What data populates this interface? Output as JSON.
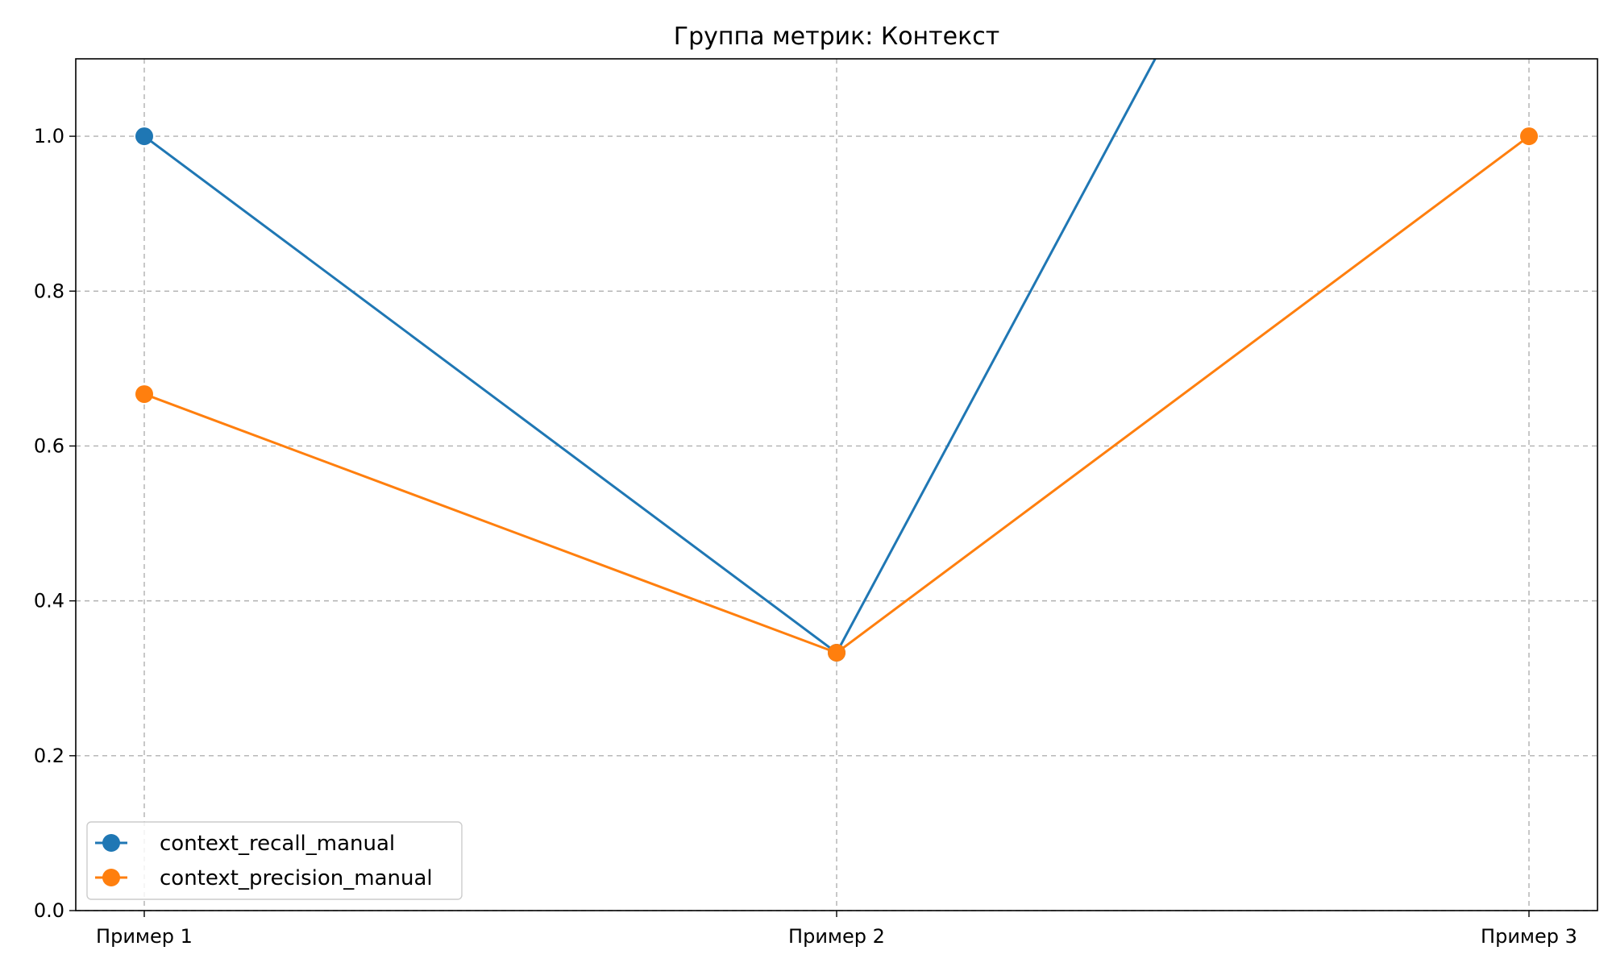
{
  "chart_data": {
    "type": "line",
    "title": "Группа метрик: Контекст",
    "xlabel": "",
    "ylabel": "",
    "categories": [
      "Пример 1",
      "Пример 2",
      "Пример 3"
    ],
    "ylim": [
      0,
      1.1
    ],
    "yticks": [
      0.0,
      0.2,
      0.4,
      0.6,
      0.8,
      1.0
    ],
    "ytick_labels": [
      "0.0",
      "0.2",
      "0.4",
      "0.6",
      "0.8",
      "1.0"
    ],
    "grid": true,
    "legend_position": "lower-left",
    "series": [
      {
        "name": "context_recall_manual",
        "values": [
          1.0,
          0.333,
          2.0
        ],
        "color": "#1f77b4"
      },
      {
        "name": "context_precision_manual",
        "values": [
          0.667,
          0.333,
          1.0
        ],
        "color": "#ff7f0e"
      }
    ]
  }
}
